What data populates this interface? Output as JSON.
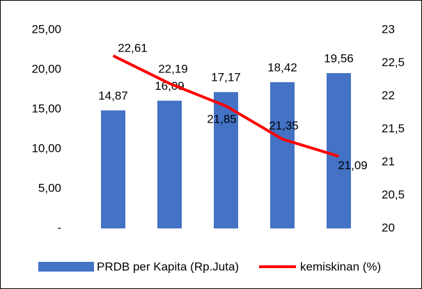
{
  "chart_data": {
    "type": "bar",
    "categories": [
      null,
      null,
      null,
      null,
      null
    ],
    "series": [
      {
        "name": "PRDB per Kapita (Rp.Juta)",
        "type": "bar",
        "color": "#4472c4",
        "values": [
          14.87,
          16.09,
          17.17,
          18.42,
          19.56
        ],
        "value_labels": [
          "14,87",
          "16,09",
          "17,17",
          "18,42",
          "19,56"
        ]
      },
      {
        "name": "kemiskinan (%)",
        "type": "line",
        "axis": "y2",
        "color": "#ff0000",
        "values": [
          22.61,
          22.19,
          21.85,
          21.35,
          21.09
        ],
        "value_labels": [
          "22,61",
          "22,19",
          "21,85",
          "21,35",
          "21,09"
        ]
      }
    ],
    "ylim": [
      0,
      25
    ],
    "yticks": [
      {
        "value": 0,
        "label": "-"
      },
      {
        "value": 5,
        "label": "5,00"
      },
      {
        "value": 10,
        "label": "10,00"
      },
      {
        "value": 15,
        "label": "15,00"
      },
      {
        "value": 20,
        "label": "20,00"
      },
      {
        "value": 25,
        "label": "25,00"
      }
    ],
    "y2lim": [
      20,
      23
    ],
    "y2ticks": [
      20,
      {
        "value": 20.5,
        "label": "20,5"
      },
      21,
      {
        "value": 21.5,
        "label": "21,5"
      },
      22,
      {
        "value": 22.5,
        "label": "22,5"
      },
      23
    ],
    "legend": "bottom"
  }
}
